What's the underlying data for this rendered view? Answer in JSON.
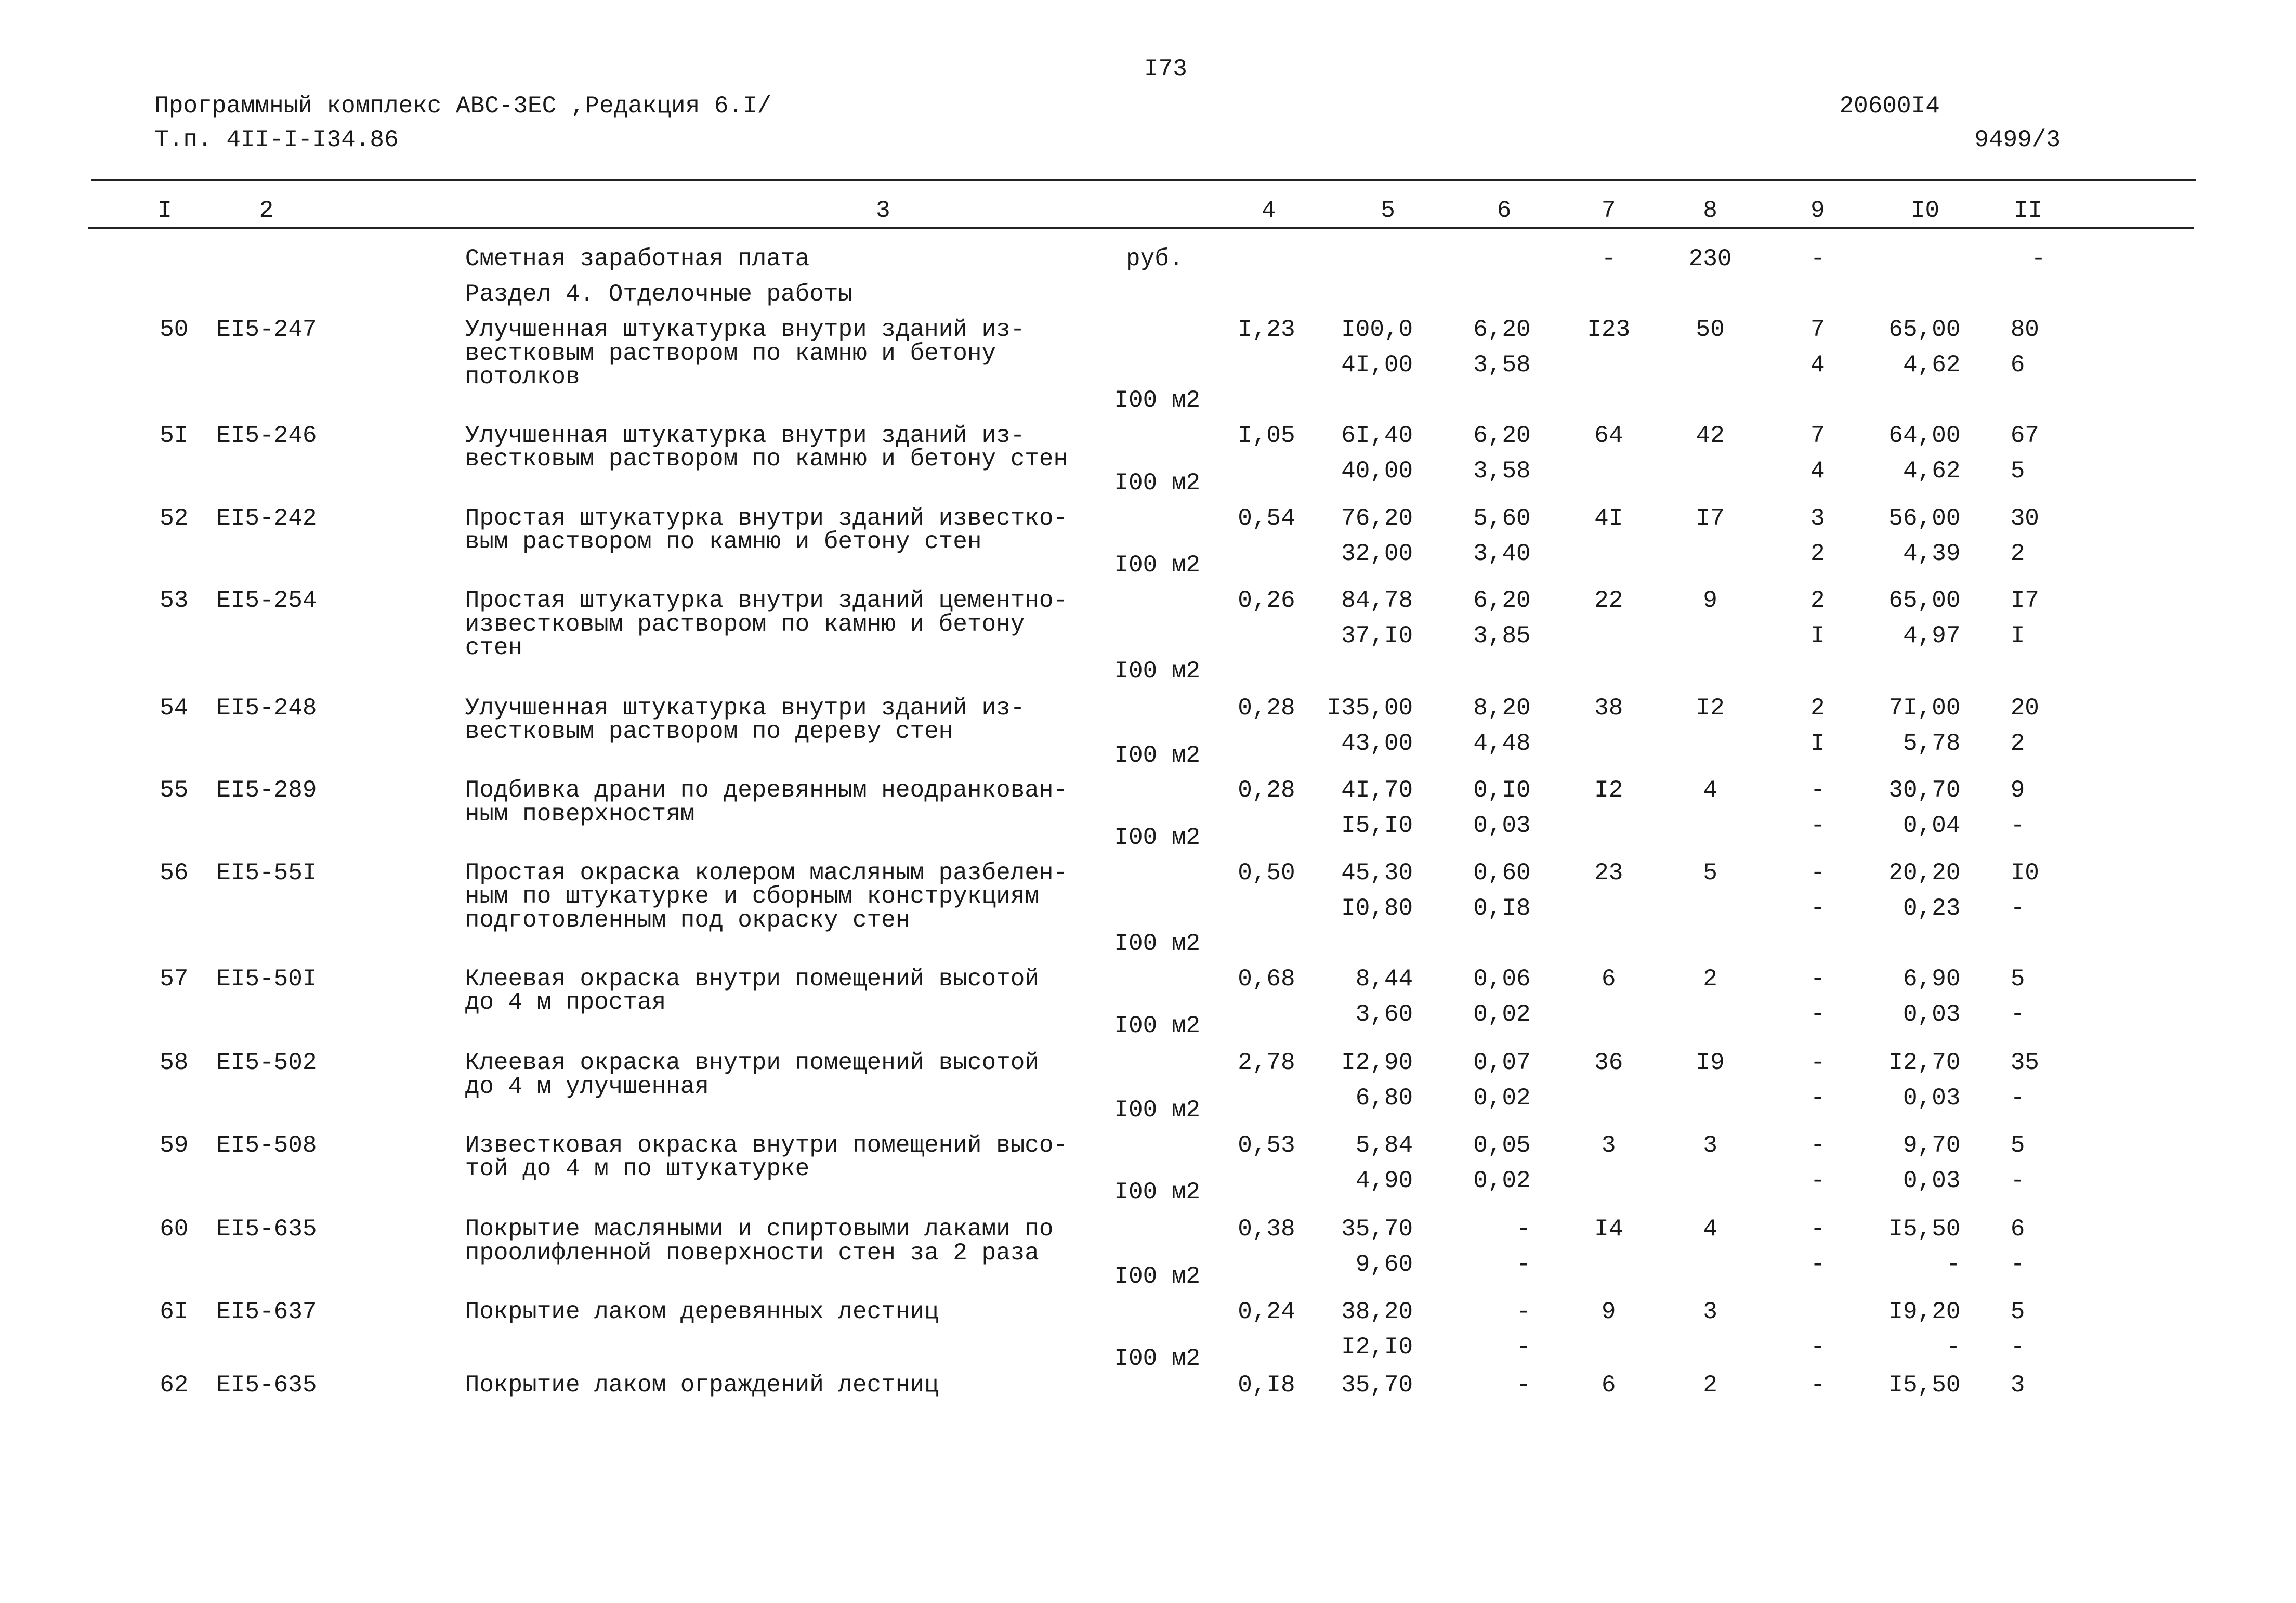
{
  "header": {
    "page_number": "I73",
    "program": "Программный комплекс АВС-3ЕС ,Редакция 6.I/",
    "project": "Т.п. 4II-I-I34.86",
    "code": "20600I4",
    "sheet": "9499/3"
  },
  "table": {
    "columns": [
      "I",
      "2",
      "3",
      "4",
      "5",
      "6",
      "7",
      "8",
      "9",
      "I0",
      "II"
    ],
    "wage_row": {
      "label": "Сметная заработная плата",
      "unit": "руб.",
      "c7": "-",
      "c8": "230",
      "c9": "-",
      "c11": "-"
    },
    "section": "Раздел 4. Отделочные работы",
    "rows": [
      {
        "num": "50",
        "code": "EI5-247",
        "description": [
          "Улучшенная штукатурка внутри зданий из-",
          "вестковым раствором по камню и бетону",
          "потолков"
        ],
        "unit": "I00 м2",
        "c4": "I,23",
        "c5": [
          "I00,0",
          "4I,00"
        ],
        "c6": [
          "6,20",
          "3,58"
        ],
        "c7": "I23",
        "c8": "50",
        "c9": [
          "7",
          "4"
        ],
        "c10": [
          "65,00",
          "4,62"
        ],
        "c11": [
          "80",
          "6"
        ]
      },
      {
        "num": "5I",
        "code": "EI5-246",
        "description": [
          "Улучшенная штукатурка внутри зданий из-",
          "вестковым раствором по камню и бетону стен"
        ],
        "unit": "I00 м2",
        "c4": "I,05",
        "c5": [
          "6I,40",
          "40,00"
        ],
        "c6": [
          "6,20",
          "3,58"
        ],
        "c7": "64",
        "c8": "42",
        "c9": [
          "7",
          "4"
        ],
        "c10": [
          "64,00",
          "4,62"
        ],
        "c11": [
          "67",
          "5"
        ]
      },
      {
        "num": "52",
        "code": "EI5-242",
        "description": [
          "Простая штукатурка внутри зданий известко-",
          "вым раствором по камню и бетону стен"
        ],
        "unit": "I00 м2",
        "c4": "0,54",
        "c5": [
          "76,20",
          "32,00"
        ],
        "c6": [
          "5,60",
          "3,40"
        ],
        "c7": "4I",
        "c8": "I7",
        "c9": [
          "3",
          "2"
        ],
        "c10": [
          "56,00",
          "4,39"
        ],
        "c11": [
          "30",
          "2"
        ]
      },
      {
        "num": "53",
        "code": "EI5-254",
        "description": [
          "Простая штукатурка внутри зданий цементно-",
          "известковым раствором по камню и бетону",
          "стен"
        ],
        "unit": "I00 м2",
        "c4": "0,26",
        "c5": [
          "84,78",
          "37,I0"
        ],
        "c6": [
          "6,20",
          "3,85"
        ],
        "c7": "22",
        "c8": "9",
        "c9": [
          "2",
          "I"
        ],
        "c10": [
          "65,00",
          "4,97"
        ],
        "c11": [
          "I7",
          "I"
        ]
      },
      {
        "num": "54",
        "code": "EI5-248",
        "description": [
          "Улучшенная штукатурка внутри зданий из-",
          "вестковым раствором по дереву стен"
        ],
        "unit": "I00 м2",
        "c4": "0,28",
        "c5": [
          "I35,00",
          "43,00"
        ],
        "c6": [
          "8,20",
          "4,48"
        ],
        "c7": "38",
        "c8": "I2",
        "c9": [
          "2",
          "I"
        ],
        "c10": [
          "7I,00",
          "5,78"
        ],
        "c11": [
          "20",
          "2"
        ]
      },
      {
        "num": "55",
        "code": "EI5-289",
        "description": [
          "Подбивка драни по деревянным неодранкован-",
          "ным поверхностям"
        ],
        "unit": "I00 м2",
        "c4": "0,28",
        "c5": [
          "4I,70",
          "I5,I0"
        ],
        "c6": [
          "0,I0",
          "0,03"
        ],
        "c7": "I2",
        "c8": "4",
        "c9": [
          "-",
          "-"
        ],
        "c10": [
          "30,70",
          "0,04"
        ],
        "c11": [
          "9",
          "-"
        ]
      },
      {
        "num": "56",
        "code": "EI5-55I",
        "description": [
          "Простая окраска колером масляным разбелен-",
          "ным по штукатурке и сборным конструкциям",
          "подготовленным под окраску стен"
        ],
        "unit": "I00 м2",
        "c4": "0,50",
        "c5": [
          "45,30",
          "I0,80"
        ],
        "c6": [
          "0,60",
          "0,I8"
        ],
        "c7": "23",
        "c8": "5",
        "c9": [
          "-",
          "-"
        ],
        "c10": [
          "20,20",
          "0,23"
        ],
        "c11": [
          "I0",
          "-"
        ]
      },
      {
        "num": "57",
        "code": "EI5-50I",
        "description": [
          "Клеевая окраска внутри помещений высотой",
          "до 4 м простая"
        ],
        "unit": "I00 м2",
        "c4": "0,68",
        "c5": [
          "8,44",
          "3,60"
        ],
        "c6": [
          "0,06",
          "0,02"
        ],
        "c7": "6",
        "c8": "2",
        "c9": [
          "-",
          "-"
        ],
        "c10": [
          "6,90",
          "0,03"
        ],
        "c11": [
          "5",
          "-"
        ]
      },
      {
        "num": "58",
        "code": "EI5-502",
        "description": [
          "Клеевая окраска внутри помещений высотой",
          "до 4 м улучшенная"
        ],
        "unit": "I00 м2",
        "c4": "2,78",
        "c5": [
          "I2,90",
          "6,80"
        ],
        "c6": [
          "0,07",
          "0,02"
        ],
        "c7": "36",
        "c8": "I9",
        "c9": [
          "-",
          "-"
        ],
        "c10": [
          "I2,70",
          "0,03"
        ],
        "c11": [
          "35",
          "-"
        ]
      },
      {
        "num": "59",
        "code": "EI5-508",
        "description": [
          "Известковая окраска внутри помещений высо-",
          "той до 4 м по штукатурке"
        ],
        "unit": "I00 м2",
        "c4": "0,53",
        "c5": [
          "5,84",
          "4,90"
        ],
        "c6": [
          "0,05",
          "0,02"
        ],
        "c7": "3",
        "c8": "3",
        "c9": [
          "-",
          "-"
        ],
        "c10": [
          "9,70",
          "0,03"
        ],
        "c11": [
          "5",
          "-"
        ]
      },
      {
        "num": "60",
        "code": "EI5-635",
        "description": [
          "Покрытие масляными и спиртовыми лаками по",
          "проолифленной поверхности стен за 2 раза"
        ],
        "unit": "I00 м2",
        "c4": "0,38",
        "c5": [
          "35,70",
          "9,60"
        ],
        "c6": [
          "-",
          "-"
        ],
        "c7": "I4",
        "c8": "4",
        "c9": [
          "-",
          "-"
        ],
        "c10": [
          "I5,50",
          "-"
        ],
        "c11": [
          "6",
          "-"
        ]
      },
      {
        "num": "6I",
        "code": "EI5-637",
        "description": [
          "Покрытие лаком деревянных лестниц"
        ],
        "unit": "I00 м2",
        "c4": "0,24",
        "c5": [
          "38,20",
          "I2,I0"
        ],
        "c6": [
          "-",
          "-"
        ],
        "c7": "9",
        "c8": "3",
        "c9": [
          null,
          "-"
        ],
        "c10": [
          "I9,20",
          "-"
        ],
        "c11": [
          "5",
          "-"
        ]
      },
      {
        "num": "62",
        "code": "EI5-635",
        "description": [
          "Покрытие лаком ограждений лестниц"
        ],
        "c4": "0,I8",
        "c5": [
          "35,70"
        ],
        "c6": [
          "-"
        ],
        "c7": "6",
        "c8": "2",
        "c9": [
          "-"
        ],
        "c10": [
          "I5,50"
        ],
        "c11": [
          "3"
        ]
      }
    ]
  }
}
